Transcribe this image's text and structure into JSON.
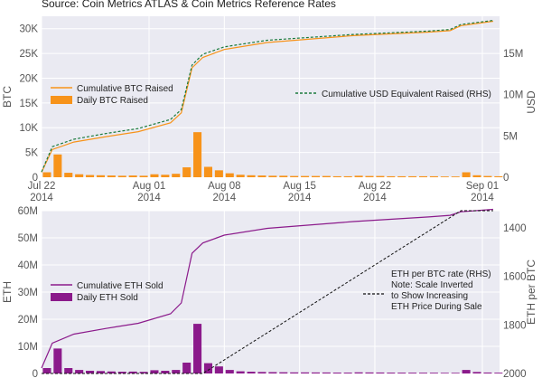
{
  "source": "Source: Coin Metrics ATLAS & Coin Metrics Reference Rates",
  "colors": {
    "panel_bg": "#eaeaf2",
    "btc_orange": "#f7931a",
    "usd_green": "#1a7a3c",
    "eth_purple": "#8b1a8b",
    "rate_black": "#111111"
  },
  "chart_data": [
    {
      "type": "bar",
      "panel": "top",
      "xlabel": "",
      "x_range": [
        "2014-07-22",
        "2014-09-02"
      ],
      "x_ticks": [
        {
          "date": "2014-07-22",
          "label": [
            "Jul 22",
            "2014"
          ]
        },
        {
          "date": "2014-08-01",
          "label": [
            "Aug 01",
            "2014"
          ]
        },
        {
          "date": "2014-08-08",
          "label": [
            "Aug 08",
            "2014"
          ]
        },
        {
          "date": "2014-08-15",
          "label": [
            "Aug 15",
            "2014"
          ]
        },
        {
          "date": "2014-08-22",
          "label": [
            "Aug 22",
            "2014"
          ]
        },
        {
          "date": "2014-09-01",
          "label": [
            "Sep 01",
            "2014"
          ]
        }
      ],
      "ylabel": "BTC",
      "ylim": [
        0,
        32500
      ],
      "y_ticks": [
        {
          "value": 0,
          "label": "0"
        },
        {
          "value": 5000,
          "label": "5K"
        },
        {
          "value": 10000,
          "label": "10K"
        },
        {
          "value": 15000,
          "label": "15K"
        },
        {
          "value": 20000,
          "label": "20K"
        },
        {
          "value": 25000,
          "label": "25K"
        },
        {
          "value": 30000,
          "label": "30K"
        }
      ],
      "y2label": "USD",
      "y2lim": [
        0,
        19500000
      ],
      "y2_ticks": [
        {
          "value": 0,
          "label": "0"
        },
        {
          "value": 5000000,
          "label": "5M"
        },
        {
          "value": 10000000,
          "label": "10M"
        },
        {
          "value": 15000000,
          "label": "15M"
        }
      ],
      "grid": true,
      "legend_left": [
        {
          "name": "Cumulative BTC Raised",
          "kind": "line",
          "color": "#f7931a"
        },
        {
          "name": "Daily BTC Raised",
          "kind": "bar",
          "color": "#f7931a"
        }
      ],
      "legend_right": [
        {
          "name": "Cumulative USD Equivalent Raised (RHS)",
          "kind": "dashed",
          "color": "#1a7a3c"
        }
      ],
      "daily_btc": {
        "dates": [
          "2014-07-22",
          "2014-07-23",
          "2014-07-24",
          "2014-07-25",
          "2014-07-26",
          "2014-07-27",
          "2014-07-28",
          "2014-07-29",
          "2014-07-30",
          "2014-07-31",
          "2014-08-01",
          "2014-08-02",
          "2014-08-03",
          "2014-08-04",
          "2014-08-05",
          "2014-08-06",
          "2014-08-07",
          "2014-08-08",
          "2014-08-09",
          "2014-08-10",
          "2014-08-11",
          "2014-08-12",
          "2014-08-13",
          "2014-08-14",
          "2014-08-15",
          "2014-08-16",
          "2014-08-17",
          "2014-08-18",
          "2014-08-19",
          "2014-08-20",
          "2014-08-21",
          "2014-08-22",
          "2014-08-23",
          "2014-08-24",
          "2014-08-25",
          "2014-08-26",
          "2014-08-27",
          "2014-08-28",
          "2014-08-29",
          "2014-08-30",
          "2014-08-31",
          "2014-09-01",
          "2014-09-02"
        ],
        "values": [
          1000,
          4600,
          900,
          600,
          450,
          400,
          350,
          300,
          350,
          300,
          600,
          500,
          700,
          2000,
          9100,
          2100,
          1400,
          800,
          500,
          400,
          350,
          300,
          300,
          250,
          250,
          250,
          250,
          200,
          200,
          300,
          250,
          250,
          200,
          200,
          200,
          200,
          200,
          150,
          150,
          1000,
          400,
          250,
          200
        ]
      },
      "cumulative_btc": {
        "dates": [
          "2014-07-22",
          "2014-07-23",
          "2014-07-25",
          "2014-07-28",
          "2014-07-31",
          "2014-08-03",
          "2014-08-04",
          "2014-08-05",
          "2014-08-06",
          "2014-08-08",
          "2014-08-12",
          "2014-08-20",
          "2014-08-27",
          "2014-08-29",
          "2014-08-30",
          "2014-09-02"
        ],
        "values": [
          1000,
          5600,
          7100,
          8200,
          9200,
          11000,
          13000,
          22100,
          24200,
          25800,
          27200,
          28600,
          29300,
          29600,
          30600,
          31500
        ]
      },
      "cumulative_usd": {
        "dates": [
          "2014-07-22",
          "2014-07-23",
          "2014-07-25",
          "2014-07-28",
          "2014-07-31",
          "2014-08-03",
          "2014-08-04",
          "2014-08-05",
          "2014-08-06",
          "2014-08-08",
          "2014-08-12",
          "2014-08-20",
          "2014-08-27",
          "2014-08-29",
          "2014-08-30",
          "2014-09-02"
        ],
        "values": [
          650000,
          3700000,
          4600000,
          5300000,
          5900000,
          7000000,
          8200000,
          13600000,
          14900000,
          15800000,
          16600000,
          17300000,
          17700000,
          17900000,
          18500000,
          19000000
        ]
      }
    },
    {
      "type": "bar",
      "panel": "bottom",
      "xlabel": "",
      "x_range": [
        "2014-07-22",
        "2014-09-02"
      ],
      "ylabel": "ETH",
      "ylim": [
        0,
        60000000
      ],
      "y_ticks": [
        {
          "value": 0,
          "label": "0"
        },
        {
          "value": 10000000,
          "label": "10M"
        },
        {
          "value": 20000000,
          "label": "20M"
        },
        {
          "value": 30000000,
          "label": "30M"
        },
        {
          "value": 40000000,
          "label": "40M"
        },
        {
          "value": 50000000,
          "label": "50M"
        },
        {
          "value": 60000000,
          "label": "60M"
        }
      ],
      "y2label": "ETH per BTC",
      "y2_inverted": true,
      "y2lim": [
        2000,
        1330
      ],
      "y2_ticks": [
        {
          "value": 1400,
          "label": "1400"
        },
        {
          "value": 1600,
          "label": "1600"
        },
        {
          "value": 1800,
          "label": "1800"
        },
        {
          "value": 2000,
          "label": "2000"
        }
      ],
      "grid": true,
      "legend_left": [
        {
          "name": "Cumulative ETH Sold",
          "kind": "line",
          "color": "#8b1a8b"
        },
        {
          "name": "Daily ETH Sold",
          "kind": "bar",
          "color": "#8b1a8b"
        }
      ],
      "legend_right": {
        "kind": "dashed",
        "color": "#111111",
        "lines": [
          "ETH per BTC rate (RHS)",
          "Note: Scale Inverted",
          "to Show Increasing",
          "ETH Price During Sale"
        ]
      },
      "daily_eth": {
        "dates": [
          "2014-07-22",
          "2014-07-23",
          "2014-07-24",
          "2014-07-25",
          "2014-07-26",
          "2014-07-27",
          "2014-07-28",
          "2014-07-29",
          "2014-07-30",
          "2014-07-31",
          "2014-08-01",
          "2014-08-02",
          "2014-08-03",
          "2014-08-04",
          "2014-08-05",
          "2014-08-06",
          "2014-08-07",
          "2014-08-08",
          "2014-08-09",
          "2014-08-10",
          "2014-08-11",
          "2014-08-12",
          "2014-08-13",
          "2014-08-14",
          "2014-08-15",
          "2014-08-16",
          "2014-08-17",
          "2014-08-18",
          "2014-08-19",
          "2014-08-20",
          "2014-08-21",
          "2014-08-22",
          "2014-08-23",
          "2014-08-24",
          "2014-08-25",
          "2014-08-26",
          "2014-08-27",
          "2014-08-28",
          "2014-08-29",
          "2014-08-30",
          "2014-08-31",
          "2014-09-01",
          "2014-09-02"
        ],
        "values": [
          2000000,
          9200000,
          2000000,
          1300000,
          1000000,
          900000,
          750000,
          650000,
          700000,
          600000,
          1200000,
          1000000,
          1300000,
          4000000,
          18300000,
          3800000,
          2600000,
          1300000,
          800000,
          650000,
          550000,
          500000,
          450000,
          400000,
          400000,
          380000,
          370000,
          330000,
          320000,
          420000,
          380000,
          360000,
          320000,
          310000,
          300000,
          290000,
          280000,
          250000,
          250000,
          1300000,
          550000,
          350000,
          300000
        ]
      },
      "cumulative_eth": {
        "dates": [
          "2014-07-22",
          "2014-07-23",
          "2014-07-25",
          "2014-07-28",
          "2014-07-31",
          "2014-08-03",
          "2014-08-04",
          "2014-08-05",
          "2014-08-06",
          "2014-08-08",
          "2014-08-12",
          "2014-08-20",
          "2014-08-27",
          "2014-08-29",
          "2014-08-30",
          "2014-09-02"
        ],
        "values": [
          2000000,
          11200000,
          14500000,
          16600000,
          18500000,
          22000000,
          26000000,
          44300000,
          48100000,
          51000000,
          53500000,
          56000000,
          57700000,
          58300000,
          59600000,
          60500000
        ]
      },
      "eth_per_btc": {
        "dates": [
          "2014-07-22",
          "2014-08-06",
          "2014-08-30",
          "2014-09-02"
        ],
        "values": [
          2000,
          2000,
          1330,
          1330
        ]
      }
    }
  ]
}
